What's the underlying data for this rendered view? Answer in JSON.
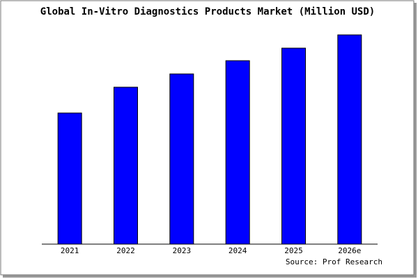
{
  "chart_data": {
    "type": "bar",
    "title": "Global In-Vitro Diagnostics Products Market (Million USD)",
    "categories": [
      "2021",
      "2022",
      "2023",
      "2024",
      "2025",
      "2026e"
    ],
    "values": [
      188,
      225,
      244,
      263,
      281,
      300
    ],
    "color": "#0000ff",
    "ylim": [
      0,
      300
    ],
    "source": "Source: Prof Research"
  }
}
